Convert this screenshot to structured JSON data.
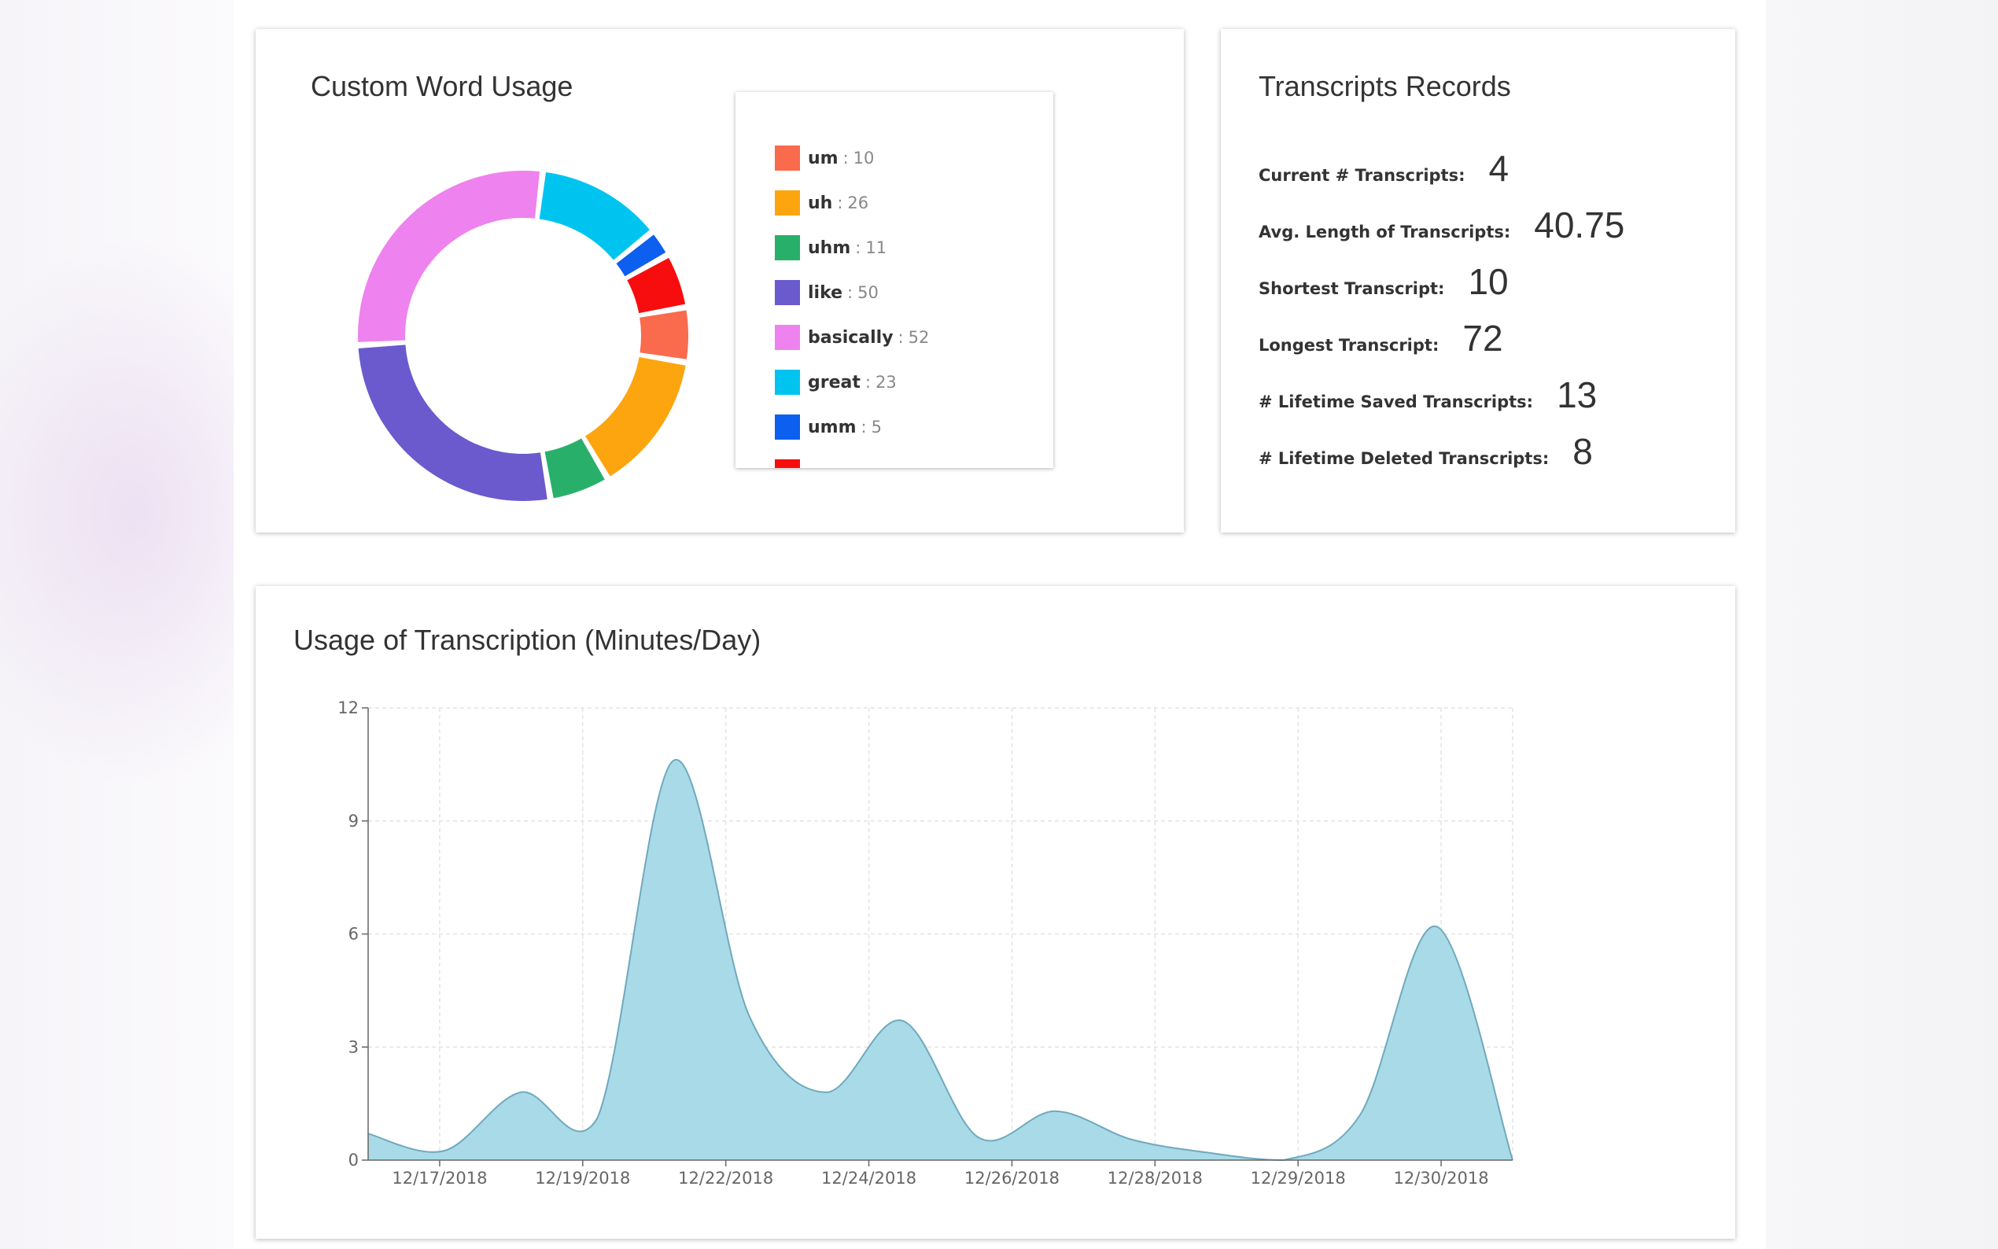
{
  "cards": {
    "word_usage_title": "Custom Word Usage",
    "records_title": "Transcripts Records",
    "usage_title": "Usage of Transcription (Minutes/Day)"
  },
  "records": [
    {
      "label": "Current # Transcripts:",
      "value": "4"
    },
    {
      "label": "Avg. Length of Transcripts:",
      "value": "40.75"
    },
    {
      "label": "Shortest Transcript:",
      "value": "10"
    },
    {
      "label": "Longest Transcript:",
      "value": "72"
    },
    {
      "label": "# Lifetime Saved Transcripts:",
      "value": "13"
    },
    {
      "label": "# Lifetime Deleted Transcripts:",
      "value": "8"
    }
  ],
  "chart_data": [
    {
      "type": "pie",
      "title": "Custom Word Usage",
      "legend_placement": "right",
      "start_category": "um",
      "slices": [
        {
          "name": "um",
          "value": 10,
          "color": "#fa6a4c"
        },
        {
          "name": "uh",
          "value": 26,
          "color": "#fda50f"
        },
        {
          "name": "uhm",
          "value": 11,
          "color": "#28b06b"
        },
        {
          "name": "like",
          "value": 50,
          "color": "#6a5acd"
        },
        {
          "name": "basically",
          "value": 52,
          "color": "#ee82ee"
        },
        {
          "name": "great",
          "value": 23,
          "color": "#00c4f0"
        },
        {
          "name": "umm",
          "value": 5,
          "color": "#0d5ff0"
        },
        {
          "name": "",
          "value": 10,
          "color": "#f70d0d"
        }
      ]
    },
    {
      "type": "area",
      "title": "Usage of Transcription (Minutes/Day)",
      "xlabel": "",
      "ylabel": "",
      "ylim": [
        0,
        12
      ],
      "yticks": [
        0,
        3,
        6,
        9,
        12
      ],
      "grid": true,
      "fill_color": "#a4d8e6",
      "line_color": "#6fa9bd",
      "x_ticks": [
        "12/17/2018",
        "12/19/2018",
        "12/22/2018",
        "12/24/2018",
        "12/26/2018",
        "12/28/2018",
        "12/29/2018",
        "12/30/2018"
      ],
      "series": [
        {
          "name": "",
          "points": [
            {
              "x": 0.0,
              "y": 0.7
            },
            {
              "x": 1.0,
              "y": 0.25
            },
            {
              "x": 2.0,
              "y": 1.8
            },
            {
              "x": 3.0,
              "y": 1.1
            },
            {
              "x": 4.0,
              "y": 10.6
            },
            {
              "x": 5.0,
              "y": 3.8
            },
            {
              "x": 6.0,
              "y": 1.8
            },
            {
              "x": 7.0,
              "y": 3.7
            },
            {
              "x": 8.0,
              "y": 0.6
            },
            {
              "x": 9.0,
              "y": 1.3
            },
            {
              "x": 10.0,
              "y": 0.55
            },
            {
              "x": 11.0,
              "y": 0.2
            },
            {
              "x": 12.0,
              "y": 0.0
            },
            {
              "x": 13.0,
              "y": 1.2
            },
            {
              "x": 14.0,
              "y": 6.2
            },
            {
              "x": 15.0,
              "y": 0.0
            }
          ]
        }
      ]
    }
  ]
}
